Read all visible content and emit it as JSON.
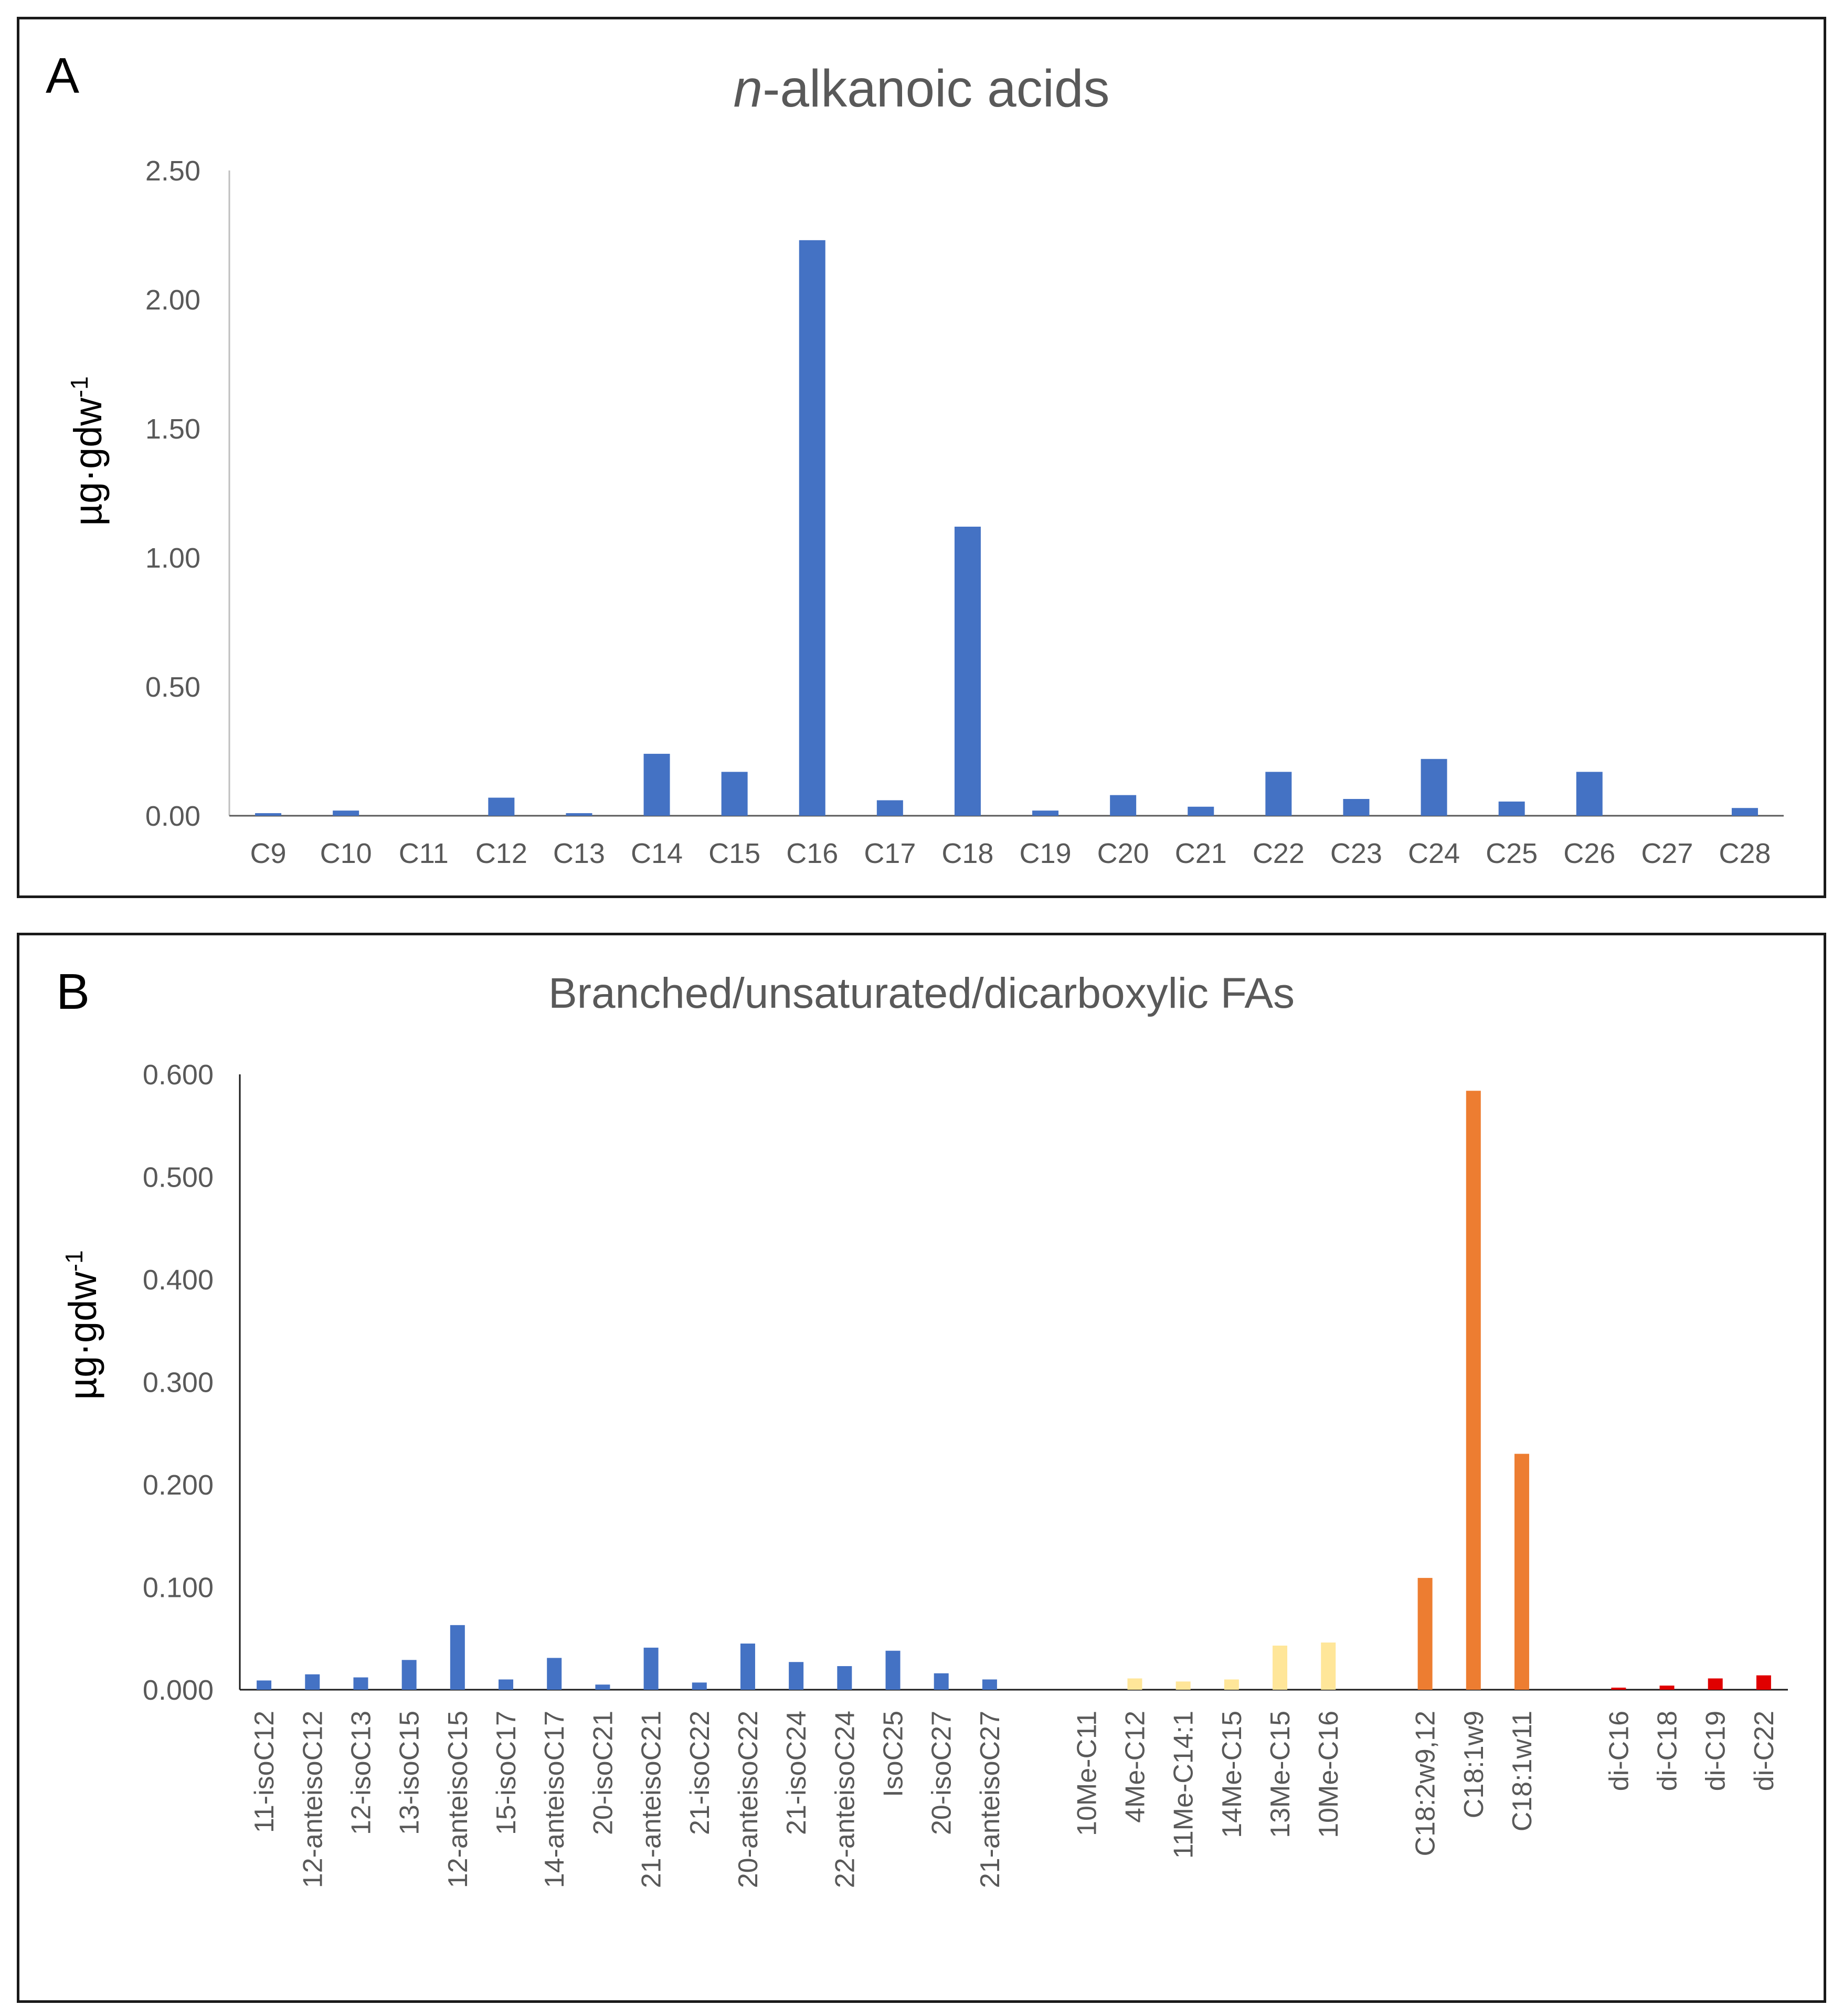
{
  "chart_data": [
    {
      "panel": "A",
      "type": "bar",
      "title_italic": "n",
      "title_rest": "-alkanoic acids",
      "xlabel": "",
      "ylabel": "µg·gdw",
      "ylabel_sup": "-1",
      "ylim": [
        0,
        2.5
      ],
      "yticks": [
        "0.00",
        "0.50",
        "1.00",
        "1.50",
        "2.00",
        "2.50"
      ],
      "color": "#4472C4",
      "categories": [
        "C9",
        "C10",
        "C11",
        "C12",
        "C13",
        "C14",
        "C15",
        "C16",
        "C17",
        "C18",
        "C19",
        "C20",
        "C21",
        "C22",
        "C23",
        "C24",
        "C25",
        "C26",
        "C27",
        "C28"
      ],
      "values": [
        0.01,
        0.02,
        0.0,
        0.07,
        0.01,
        0.24,
        0.17,
        2.23,
        0.06,
        1.12,
        0.02,
        0.08,
        0.035,
        0.17,
        0.065,
        0.22,
        0.055,
        0.17,
        0.0,
        0.03
      ]
    },
    {
      "panel": "B",
      "type": "bar",
      "title": "Branched/unsaturated/dicarboxylic FAs",
      "xlabel": "",
      "ylabel": "µg·gdw",
      "ylabel_sup": "-1",
      "ylim": [
        0,
        0.6
      ],
      "yticks": [
        "0.000",
        "0.100",
        "0.200",
        "0.300",
        "0.400",
        "0.500",
        "0.600"
      ],
      "groups": [
        {
          "color": "#4472C4",
          "categories": [
            "11-isoC12",
            "12-anteisoC12",
            "12-isoC13",
            "13-isoC15",
            "12-anteisoC15",
            "15-isoC17",
            "14-anteisoC17",
            "20-isoC21",
            "21-anteisoC21",
            "21-isoC22",
            "20-anteisoC22",
            "21-isoC24",
            "22-anteisoC24",
            "IsoC25",
            "20-isoC27",
            "21-anteisoC27"
          ],
          "values": [
            0.009,
            0.015,
            0.012,
            0.029,
            0.063,
            0.01,
            0.031,
            0.005,
            0.041,
            0.007,
            0.045,
            0.027,
            0.023,
            0.038,
            0.016,
            0.01
          ]
        },
        {
          "color": "#FFE699",
          "categories": [
            "10Me-C11",
            "4Me-C12",
            "11Me-C14:1",
            "14Me-C15",
            "13Me-C15",
            "10Me-C16"
          ],
          "values": [
            0.0,
            0.011,
            0.008,
            0.01,
            0.043,
            0.046
          ]
        },
        {
          "color": "#ED7D31",
          "categories": [
            "C18:2w9,12",
            "C18:1w9",
            "C18:1w11"
          ],
          "values": [
            0.109,
            0.584,
            0.23
          ]
        },
        {
          "color": "#E00000",
          "categories": [
            "di-C16",
            "di-C18",
            "di-C19",
            "di-C22"
          ],
          "values": [
            0.002,
            0.004,
            0.011,
            0.014
          ]
        }
      ]
    }
  ],
  "panel_a": {
    "letter": "A"
  },
  "panel_b": {
    "letter": "B"
  }
}
